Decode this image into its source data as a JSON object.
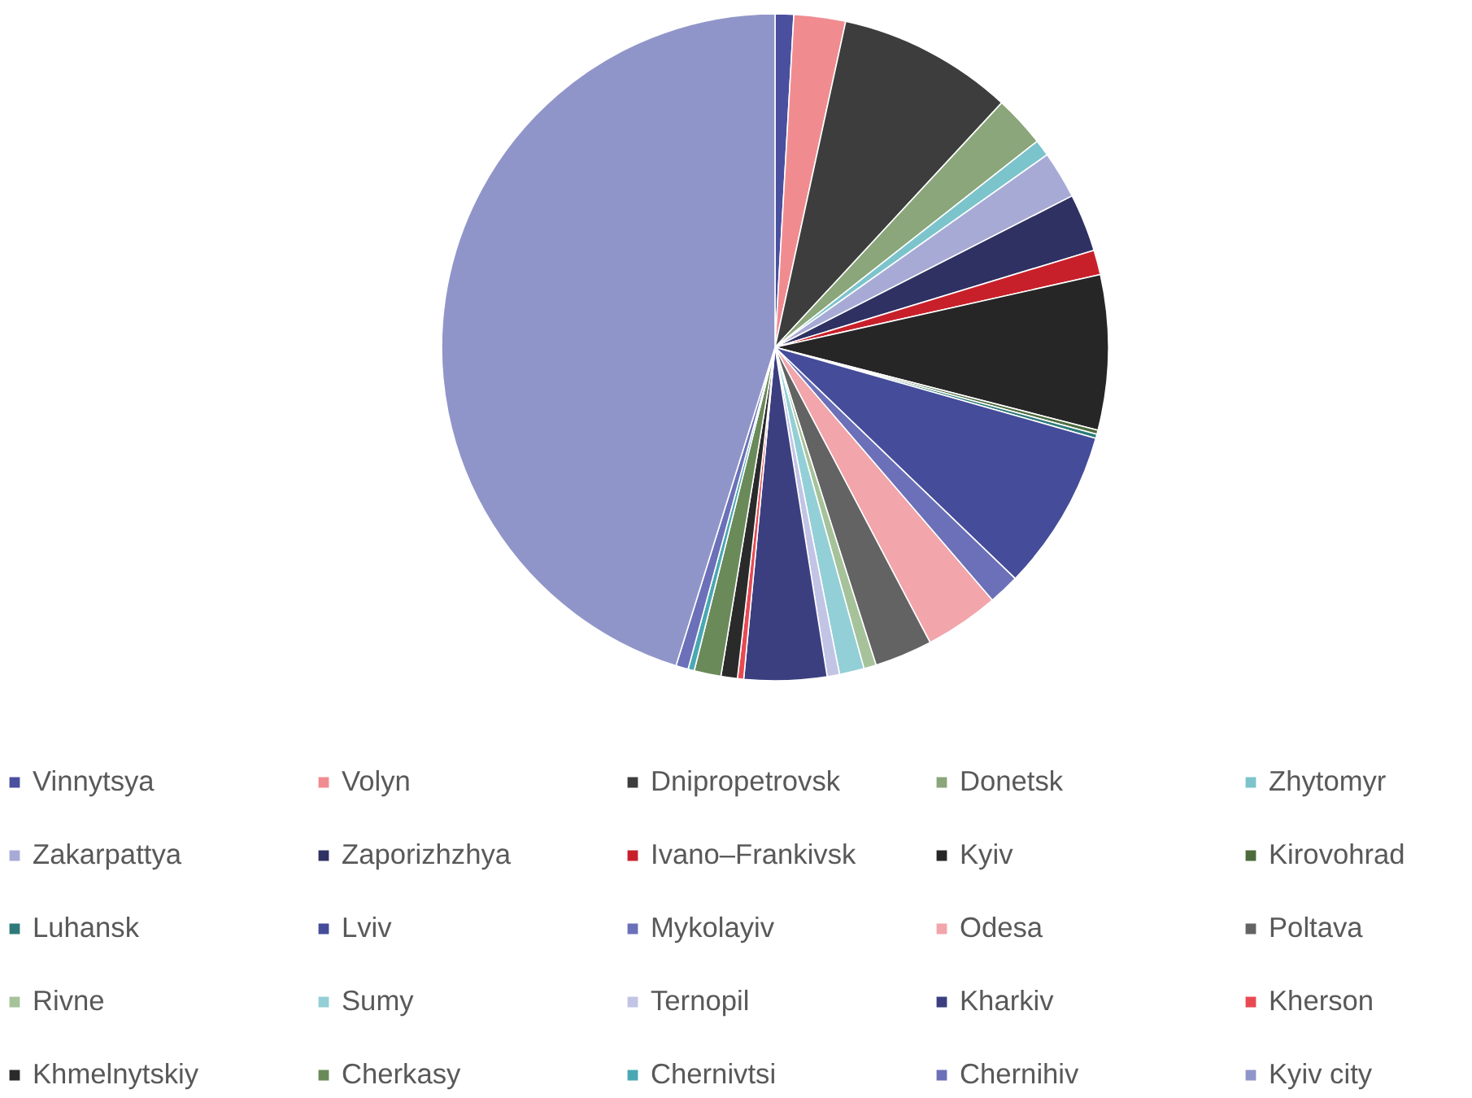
{
  "chart_data": {
    "type": "pie",
    "categories": [
      "Vinnytsya",
      "Volyn",
      "Dnipropetrovsk",
      "Donetsk",
      "Zhytomyr",
      "Zakarpattya",
      "Zaporizhzhya",
      "Ivano–Frankivsk",
      "Kyiv",
      "Kirovohrad",
      "Luhansk",
      "Lviv",
      "Mykolayiv",
      "Odesa",
      "Poltava",
      "Rivne",
      "Sumy",
      "Ternopil",
      "Kharkiv",
      "Kherson",
      "Khmelnytskiy",
      "Cherkasy",
      "Chernivtsi",
      "Chernihiv",
      "Kyiv city"
    ],
    "values": [
      0.9,
      2.5,
      8.5,
      2.5,
      0.8,
      2.3,
      2.8,
      1.2,
      7.5,
      0.2,
      0.2,
      7.8,
      1.5,
      3.6,
      2.8,
      0.6,
      1.2,
      0.6,
      4.0,
      0.3,
      0.8,
      1.3,
      0.3,
      0.6,
      45.2
    ],
    "colors": [
      "#4a4f9e",
      "#f08c90",
      "#3d3d3d",
      "#8aa67a",
      "#7cc4cc",
      "#a8aad6",
      "#2f3162",
      "#c8202a",
      "#262626",
      "#4d6b3d",
      "#2e7a7a",
      "#454c9a",
      "#6b70b8",
      "#f2a5aa",
      "#636363",
      "#a6c29a",
      "#93cfd6",
      "#c2c4e6",
      "#3b3f80",
      "#e84a52",
      "#2a2a2a",
      "#6a8a5a",
      "#4aa8b4",
      "#6b70b8",
      "#9095c9"
    ],
    "legend": "bottom"
  }
}
